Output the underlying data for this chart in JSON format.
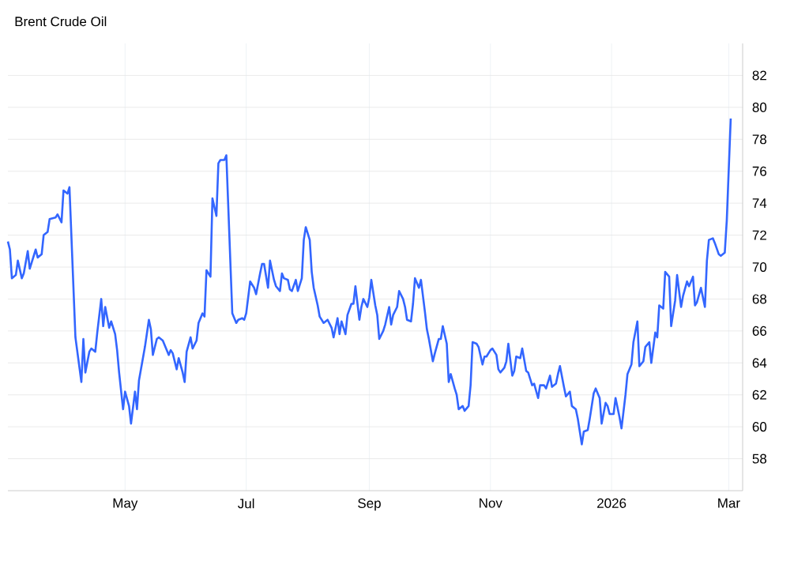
{
  "chart_data": {
    "type": "line",
    "title": "Brent Crude Oil",
    "x": [
      "2025-03-03",
      "2025-03-04",
      "2025-03-05",
      "2025-03-07",
      "2025-03-08",
      "2025-03-10",
      "2025-03-11",
      "2025-03-13",
      "2025-03-14",
      "2025-03-17",
      "2025-03-18",
      "2025-03-20",
      "2025-03-21",
      "2025-03-23",
      "2025-03-24",
      "2025-03-27",
      "2025-03-28",
      "2025-03-30",
      "2025-03-31",
      "2025-04-02",
      "2025-04-03",
      "2025-04-06",
      "2025-04-09",
      "2025-04-10",
      "2025-04-11",
      "2025-04-13",
      "2025-04-14",
      "2025-04-16",
      "2025-04-17",
      "2025-04-19",
      "2025-04-20",
      "2025-04-21",
      "2025-04-23",
      "2025-04-24",
      "2025-04-26",
      "2025-04-27",
      "2025-04-28",
      "2025-04-30",
      "2025-05-01",
      "2025-05-03",
      "2025-05-04",
      "2025-05-06",
      "2025-05-07",
      "2025-05-08",
      "2025-05-11",
      "2025-05-13",
      "2025-05-14",
      "2025-05-15",
      "2025-05-17",
      "2025-05-18",
      "2025-05-20",
      "2025-05-23",
      "2025-05-24",
      "2025-05-25",
      "2025-05-27",
      "2025-05-28",
      "2025-05-30",
      "2025-05-31",
      "2025-06-01",
      "2025-06-03",
      "2025-06-04",
      "2025-06-06",
      "2025-06-07",
      "2025-06-09",
      "2025-06-10",
      "2025-06-11",
      "2025-06-13",
      "2025-06-14",
      "2025-06-16",
      "2025-06-17",
      "2025-06-18",
      "2025-06-20",
      "2025-06-21",
      "2025-06-24",
      "2025-06-26",
      "2025-06-27",
      "2025-06-29",
      "2025-06-30",
      "2025-07-01",
      "2025-07-03",
      "2025-07-05",
      "2025-07-06",
      "2025-07-08",
      "2025-07-09",
      "2025-07-10",
      "2025-07-12",
      "2025-07-13",
      "2025-07-15",
      "2025-07-16",
      "2025-07-18",
      "2025-07-19",
      "2025-07-20",
      "2025-07-22",
      "2025-07-23",
      "2025-07-24",
      "2025-07-26",
      "2025-07-27",
      "2025-07-29",
      "2025-07-30",
      "2025-07-31",
      "2025-08-02",
      "2025-08-03",
      "2025-08-04",
      "2025-08-06",
      "2025-08-07",
      "2025-08-09",
      "2025-08-10",
      "2025-08-11",
      "2025-08-13",
      "2025-08-14",
      "2025-08-16",
      "2025-08-17",
      "2025-08-18",
      "2025-08-20",
      "2025-08-21",
      "2025-08-23",
      "2025-08-24",
      "2025-08-25",
      "2025-08-27",
      "2025-08-28",
      "2025-08-29",
      "2025-08-31",
      "2025-09-01",
      "2025-09-02",
      "2025-09-04",
      "2025-09-05",
      "2025-09-06",
      "2025-09-08",
      "2025-09-09",
      "2025-09-11",
      "2025-09-12",
      "2025-09-13",
      "2025-09-15",
      "2025-09-16",
      "2025-09-18",
      "2025-09-19",
      "2025-09-20",
      "2025-09-22",
      "2025-09-23",
      "2025-09-24",
      "2025-09-26",
      "2025-09-27",
      "2025-09-29",
      "2025-09-30",
      "2025-10-01",
      "2025-10-03",
      "2025-10-04",
      "2025-10-06",
      "2025-10-07",
      "2025-10-08",
      "2025-10-10",
      "2025-10-11",
      "2025-10-12",
      "2025-10-14",
      "2025-10-15",
      "2025-10-16",
      "2025-10-18",
      "2025-10-19",
      "2025-10-21",
      "2025-10-22",
      "2025-10-23",
      "2025-10-25",
      "2025-10-26",
      "2025-10-28",
      "2025-10-29",
      "2025-10-30",
      "2025-11-01",
      "2025-11-02",
      "2025-11-04",
      "2025-11-05",
      "2025-11-06",
      "2025-11-08",
      "2025-11-09",
      "2025-11-10",
      "2025-11-12",
      "2025-11-13",
      "2025-11-14",
      "2025-11-16",
      "2025-11-17",
      "2025-11-19",
      "2025-11-20",
      "2025-11-22",
      "2025-11-23",
      "2025-11-25",
      "2025-11-26",
      "2025-11-28",
      "2025-11-29",
      "2025-12-01",
      "2025-12-02",
      "2025-12-04",
      "2025-12-05",
      "2025-12-06",
      "2025-12-08",
      "2025-12-09",
      "2025-12-11",
      "2025-12-12",
      "2025-12-14",
      "2025-12-15",
      "2025-12-17",
      "2025-12-18",
      "2025-12-20",
      "2025-12-21",
      "2025-12-23",
      "2025-12-24",
      "2025-12-26",
      "2025-12-27",
      "2025-12-29",
      "2025-12-30",
      "2025-12-31",
      "2026-01-02",
      "2026-01-03",
      "2026-01-05",
      "2026-01-06",
      "2026-01-08",
      "2026-01-09",
      "2026-01-11",
      "2026-01-12",
      "2026-01-14",
      "2026-01-15",
      "2026-01-17",
      "2026-01-18",
      "2026-01-20",
      "2026-01-21",
      "2026-01-23",
      "2026-01-24",
      "2026-01-25",
      "2026-01-27",
      "2026-01-28",
      "2026-01-30",
      "2026-01-31",
      "2026-02-02",
      "2026-02-03",
      "2026-02-05",
      "2026-02-06",
      "2026-02-08",
      "2026-02-09",
      "2026-02-11",
      "2026-02-12",
      "2026-02-13",
      "2026-02-15",
      "2026-02-17",
      "2026-02-18",
      "2026-02-19",
      "2026-02-21",
      "2026-02-22",
      "2026-02-24",
      "2026-02-25",
      "2026-02-27",
      "2026-02-28",
      "2026-03-02"
    ],
    "values": [
      71.6,
      71.1,
      69.3,
      69.5,
      70.4,
      69.3,
      69.6,
      71.0,
      69.9,
      71.1,
      70.6,
      70.8,
      72.0,
      72.2,
      73.0,
      73.1,
      73.3,
      72.8,
      74.8,
      74.6,
      75.0,
      65.6,
      62.8,
      65.5,
      63.4,
      64.7,
      64.9,
      64.7,
      65.9,
      68.0,
      66.3,
      67.5,
      66.2,
      66.6,
      65.8,
      64.8,
      63.4,
      61.1,
      62.2,
      61.3,
      60.2,
      62.2,
      61.1,
      62.9,
      65.0,
      66.7,
      66.1,
      64.5,
      65.5,
      65.6,
      65.4,
      64.5,
      64.8,
      64.6,
      63.6,
      64.3,
      63.4,
      62.8,
      64.7,
      65.6,
      64.9,
      65.4,
      66.5,
      67.1,
      66.9,
      69.8,
      69.4,
      74.3,
      73.2,
      76.5,
      76.7,
      76.7,
      77.0,
      67.1,
      66.5,
      66.7,
      66.8,
      66.7,
      67.1,
      69.1,
      68.7,
      68.3,
      69.6,
      70.2,
      70.2,
      68.7,
      70.4,
      69.2,
      68.8,
      68.5,
      69.6,
      69.3,
      69.2,
      68.6,
      68.5,
      69.2,
      68.5,
      69.3,
      71.7,
      72.5,
      71.7,
      69.7,
      68.7,
      67.6,
      66.9,
      66.5,
      66.6,
      66.7,
      66.2,
      65.6,
      66.8,
      65.8,
      66.6,
      65.8,
      67.0,
      67.7,
      67.7,
      68.8,
      66.7,
      67.5,
      68.0,
      67.5,
      68.1,
      69.2,
      67.6,
      67.0,
      65.5,
      66.0,
      66.4,
      67.5,
      66.4,
      67.0,
      67.5,
      68.5,
      68.0,
      67.5,
      66.7,
      66.6,
      67.7,
      69.3,
      68.7,
      69.2,
      67.2,
      66.1,
      65.5,
      64.1,
      64.6,
      65.5,
      65.5,
      66.3,
      65.2,
      62.8,
      63.3,
      62.4,
      62.0,
      61.1,
      61.3,
      61.0,
      61.3,
      62.6,
      65.3,
      65.2,
      65.0,
      63.9,
      64.4,
      64.4,
      64.8,
      64.9,
      64.5,
      63.6,
      63.4,
      63.7,
      64.1,
      65.2,
      63.2,
      63.5,
      64.4,
      64.3,
      64.9,
      63.5,
      63.4,
      62.6,
      62.7,
      61.8,
      62.6,
      62.6,
      62.4,
      63.2,
      62.5,
      62.7,
      63.3,
      63.8,
      62.5,
      61.9,
      62.2,
      61.3,
      61.1,
      60.5,
      58.9,
      59.7,
      59.8,
      60.5,
      62.1,
      62.4,
      61.8,
      60.2,
      61.5,
      61.3,
      60.8,
      60.8,
      61.8,
      60.6,
      59.9,
      62.0,
      63.3,
      63.9,
      65.3,
      66.6,
      63.8,
      64.1,
      65.0,
      65.3,
      64.0,
      65.9,
      65.6,
      67.6,
      67.4,
      69.7,
      69.4,
      66.3,
      67.9,
      69.5,
      67.5,
      68.2,
      69.1,
      68.8,
      69.4,
      67.6,
      67.8,
      68.7,
      67.5,
      70.4,
      71.7,
      71.8,
      71.5,
      70.8,
      70.7,
      70.9,
      72.9,
      79.3
    ],
    "color": "#3366ff",
    "xlim": [
      "2025-03-03",
      "2026-03-08"
    ],
    "ylim": [
      56,
      84
    ],
    "xticks": [
      {
        "value": "2025-05-01",
        "label": "May"
      },
      {
        "value": "2025-07-01",
        "label": "Jul"
      },
      {
        "value": "2025-09-01",
        "label": "Sep"
      },
      {
        "value": "2025-11-01",
        "label": "Nov"
      },
      {
        "value": "2026-01-01",
        "label": "2026"
      },
      {
        "value": "2026-03-01",
        "label": "Mar"
      }
    ],
    "yticks": [
      58,
      60,
      62,
      64,
      66,
      68,
      70,
      72,
      74,
      76,
      78,
      80,
      82
    ],
    "grid": true
  }
}
